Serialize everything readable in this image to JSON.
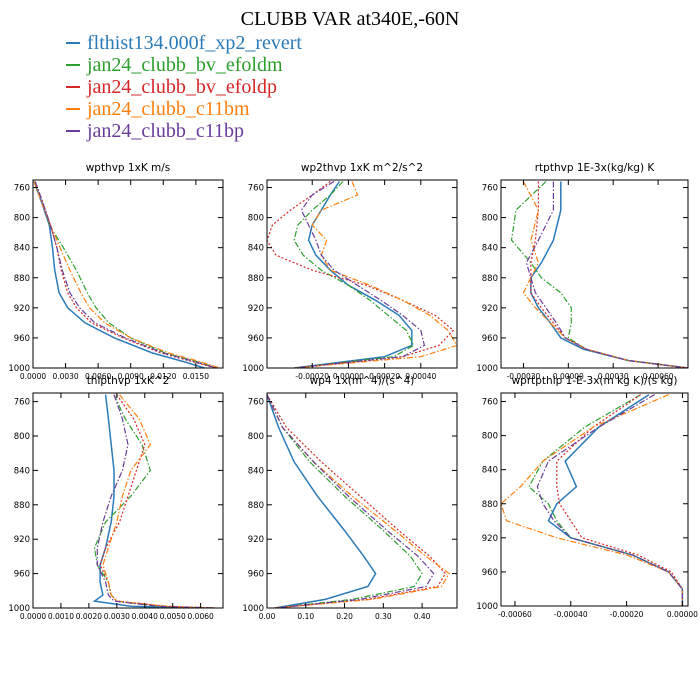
{
  "title": "CLUBB VAR at340E,-60N",
  "legend": [
    {
      "name": "flthist134.000f_xp2_revert",
      "color": "#2b7bb9",
      "dash": "solid"
    },
    {
      "name": "jan24_clubb_bv_efoldm",
      "color": "#2ca02c",
      "dash": "dashdot"
    },
    {
      "name": "jan24_clubb_bv_efoldp",
      "color": "#d62728",
      "dash": "dot"
    },
    {
      "name": "jan24_clubb_c11bm",
      "color": "#ff7f0e",
      "dash": "dashdot"
    },
    {
      "name": "jan24_clubb_c11bp",
      "color": "#6a3d9a",
      "dash": "dashdot"
    }
  ],
  "chart_data": [
    {
      "type": "line",
      "title": "wpthvp  1xK m/s",
      "xlim": [
        0,
        0.0175
      ],
      "ylim": [
        1000,
        750
      ],
      "xticks": [
        0,
        0.003,
        0.006,
        0.009,
        0.012,
        0.015
      ],
      "xticklabels": [
        "0.0000",
        "0.0030",
        "0.0060",
        "0.0090",
        "0.0120",
        "0.0150"
      ],
      "yticks": [
        760,
        800,
        840,
        880,
        920,
        960,
        1000
      ],
      "yticklabels": [
        "760",
        "800",
        "840",
        "880",
        "920",
        "960",
        "1000"
      ],
      "y": [
        752,
        780,
        810,
        840,
        870,
        900,
        920,
        940,
        960,
        980,
        992,
        1000
      ],
      "series": [
        {
          "values": [
            0.0001,
            0.0008,
            0.0015,
            0.0018,
            0.002,
            0.0024,
            0.0032,
            0.0048,
            0.0075,
            0.011,
            0.014,
            0.0158
          ]
        },
        {
          "values": [
            0.0002,
            0.0009,
            0.0015,
            0.0028,
            0.004,
            0.005,
            0.0058,
            0.007,
            0.009,
            0.0122,
            0.0152,
            0.017
          ]
        },
        {
          "values": [
            0.0002,
            0.0009,
            0.0016,
            0.0022,
            0.0026,
            0.0032,
            0.004,
            0.0054,
            0.0083,
            0.0118,
            0.0148,
            0.0168
          ]
        },
        {
          "values": [
            0.0001,
            0.0008,
            0.0016,
            0.0025,
            0.0034,
            0.0044,
            0.0052,
            0.0066,
            0.009,
            0.0125,
            0.0155,
            0.0172
          ]
        },
        {
          "values": [
            0.0002,
            0.0009,
            0.0016,
            0.0022,
            0.0027,
            0.0034,
            0.0043,
            0.0057,
            0.0085,
            0.012,
            0.015,
            0.0169
          ]
        }
      ]
    },
    {
      "type": "line",
      "title": "wp2thvp  1xK m^2/s^2",
      "xlim": [
        -0.00045,
        0.0006
      ],
      "ylim": [
        1000,
        750
      ],
      "xticks": [
        -0.0002,
        0,
        0.0002,
        0.0004
      ],
      "xticklabels": [
        "-0.00020",
        "0.00000",
        "0.00020",
        "0.00040"
      ],
      "yticks": [
        760,
        800,
        840,
        880,
        920,
        960,
        1000
      ],
      "yticklabels": [
        "760",
        "800",
        "840",
        "880",
        "920",
        "960",
        "1000"
      ],
      "y": [
        752,
        770,
        790,
        810,
        830,
        850,
        870,
        890,
        910,
        930,
        950,
        970,
        985,
        1000
      ],
      "series": [
        {
          "values": [
            -5e-05,
            -0.0001,
            -0.00015,
            -0.0002,
            -0.00022,
            -0.00018,
            -0.0001,
            0.0,
            0.00015,
            0.00028,
            0.00035,
            0.00035,
            0.0002,
            -0.0003
          ]
        },
        {
          "values": [
            -3e-05,
            -0.0001,
            -0.0002,
            -0.00028,
            -0.0003,
            -0.00025,
            -0.00015,
            0.0,
            0.00012,
            0.00022,
            0.00032,
            0.00036,
            0.00025,
            -0.0003
          ]
        },
        {
          "values": [
            -0.0001,
            -0.0002,
            -0.00032,
            -0.00042,
            -0.00045,
            -0.0004,
            -0.0002,
            0.0001,
            0.0003,
            0.00048,
            0.00058,
            0.0005,
            0.0003,
            -0.0003
          ]
        },
        {
          "values": [
            2e-05,
            5e-05,
            -0.00015,
            -0.0002,
            -0.00012,
            -0.00015,
            -0.0001,
            0.00012,
            0.0003,
            0.00045,
            0.00055,
            0.0006,
            0.0004,
            -0.0003
          ]
        },
        {
          "values": [
            -8e-05,
            -0.0002,
            -0.00026,
            -0.00022,
            -0.00018,
            -0.00015,
            -8e-05,
            5e-05,
            0.00018,
            0.0003,
            0.0004,
            0.00042,
            0.0003,
            -0.0003
          ]
        }
      ]
    },
    {
      "type": "line",
      "title": "rtpthvp  1E-3x(kg/kg) K",
      "xlim": [
        -0.00045,
        0.0008
      ],
      "ylim": [
        1000,
        750
      ],
      "xticks": [
        -0.0003,
        0,
        0.0003,
        0.0006
      ],
      "xticklabels": [
        "-0.00030",
        "0.00000",
        "0.00030",
        "0.00060"
      ],
      "yticks": [
        760,
        800,
        840,
        880,
        920,
        960,
        1000
      ],
      "yticklabels": [
        "760",
        "800",
        "840",
        "880",
        "920",
        "960",
        "1000"
      ],
      "y": [
        752,
        790,
        830,
        860,
        880,
        900,
        920,
        940,
        960,
        975,
        990,
        1000
      ],
      "series": [
        {
          "values": [
            -5e-05,
            -5e-05,
            -0.0001,
            -0.00018,
            -0.00025,
            -0.00025,
            -0.0002,
            -0.00012,
            -5e-05,
            0.0001,
            0.0004,
            0.0008
          ]
        },
        {
          "values": [
            -0.00015,
            -0.00035,
            -0.00038,
            -0.00025,
            -0.00018,
            -5e-05,
            2e-05,
            2e-05,
            0.0,
            0.00012,
            0.0004,
            0.0008
          ]
        },
        {
          "values": [
            -0.0002,
            -0.0002,
            -0.00022,
            -0.00025,
            -0.00025,
            -0.00025,
            -0.00018,
            -0.0001,
            -2e-05,
            0.00012,
            0.0004,
            0.0008
          ]
        },
        {
          "values": [
            -0.0003,
            -0.0002,
            -0.00025,
            -0.0002,
            -0.00025,
            -0.0003,
            -0.00022,
            -0.00012,
            -2e-05,
            0.00012,
            0.0004,
            0.0008
          ]
        },
        {
          "values": [
            -0.0001,
            -0.0001,
            -0.0002,
            -0.00028,
            -0.00025,
            -0.00022,
            -0.00015,
            -8e-05,
            -2e-05,
            0.00012,
            0.0004,
            0.0008
          ]
        }
      ]
    },
    {
      "type": "line",
      "title": "thlpthvp  1xK^2",
      "xlim": [
        0,
        0.0068
      ],
      "ylim": [
        1000,
        750
      ],
      "xticks": [
        0,
        0.001,
        0.002,
        0.003,
        0.004,
        0.005,
        0.006
      ],
      "xticklabels": [
        "0.0000",
        "0.0010",
        "0.0020",
        "0.0030",
        "0.0040",
        "0.0050",
        "0.0060"
      ],
      "yticks": [
        760,
        800,
        840,
        880,
        920,
        960,
        1000
      ],
      "yticklabels": [
        "760",
        "800",
        "840",
        "880",
        "920",
        "960",
        "1000"
      ],
      "y": [
        752,
        780,
        810,
        840,
        870,
        900,
        930,
        950,
        970,
        985,
        992,
        998,
        1000
      ],
      "series": [
        {
          "values": [
            0.0026,
            0.0027,
            0.0028,
            0.0029,
            0.0029,
            0.0028,
            0.0026,
            0.0024,
            0.0024,
            0.0025,
            0.0022,
            0.0035,
            0.006
          ]
        },
        {
          "values": [
            0.0029,
            0.0033,
            0.0039,
            0.0042,
            0.0035,
            0.0026,
            0.0022,
            0.0023,
            0.0027,
            0.0028,
            0.003,
            0.0045,
            0.0065
          ]
        },
        {
          "values": [
            0.003,
            0.0036,
            0.004,
            0.0037,
            0.0034,
            0.0031,
            0.0026,
            0.0024,
            0.0027,
            0.0028,
            0.003,
            0.0048,
            0.0065
          ]
        },
        {
          "values": [
            0.0031,
            0.0038,
            0.0042,
            0.0035,
            0.0032,
            0.003,
            0.0027,
            0.0025,
            0.0027,
            0.0028,
            0.003,
            0.0048,
            0.0065
          ]
        },
        {
          "values": [
            0.0029,
            0.0032,
            0.0034,
            0.0032,
            0.0028,
            0.0025,
            0.0023,
            0.0023,
            0.0026,
            0.0027,
            0.0029,
            0.0045,
            0.0065
          ]
        }
      ]
    },
    {
      "type": "line",
      "title": "wp4  1x(m^4)/(s^4)",
      "xlim": [
        0,
        0.49
      ],
      "ylim": [
        1000,
        750
      ],
      "xticks": [
        0,
        0.1,
        0.2,
        0.3,
        0.4
      ],
      "xticklabels": [
        "0.00",
        "0.10",
        "0.20",
        "0.30",
        "0.40"
      ],
      "yticks": [
        760,
        800,
        840,
        880,
        920,
        960,
        1000
      ],
      "yticklabels": [
        "760",
        "800",
        "840",
        "880",
        "920",
        "960",
        "1000"
      ],
      "y": [
        752,
        790,
        830,
        870,
        910,
        940,
        960,
        975,
        990,
        1000
      ],
      "series": [
        {
          "values": [
            0.0,
            0.03,
            0.07,
            0.13,
            0.2,
            0.25,
            0.28,
            0.26,
            0.15,
            0.02
          ]
        },
        {
          "values": [
            0.0,
            0.04,
            0.11,
            0.2,
            0.3,
            0.37,
            0.4,
            0.38,
            0.22,
            0.02
          ]
        },
        {
          "values": [
            0.0,
            0.05,
            0.14,
            0.24,
            0.34,
            0.42,
            0.46,
            0.44,
            0.26,
            0.02
          ]
        },
        {
          "values": [
            0.0,
            0.04,
            0.12,
            0.22,
            0.33,
            0.41,
            0.47,
            0.45,
            0.27,
            0.02
          ]
        },
        {
          "values": [
            0.0,
            0.04,
            0.12,
            0.21,
            0.31,
            0.39,
            0.43,
            0.41,
            0.24,
            0.02
          ]
        }
      ]
    },
    {
      "type": "line",
      "title": "wprtpthlp  1-E-3x(m kg K)/(s kg)",
      "xlim": [
        -0.00065,
        2e-05
      ],
      "ylim": [
        1000,
        750
      ],
      "xticks": [
        -0.0006,
        -0.0004,
        -0.0002,
        0
      ],
      "xticklabels": [
        "-0.00060",
        "-0.00040",
        "-0.00020",
        "0.00000"
      ],
      "yticks": [
        760,
        800,
        840,
        880,
        920,
        960,
        1000
      ],
      "yticklabels": [
        "760",
        "800",
        "840",
        "880",
        "920",
        "960",
        "1000"
      ],
      "y": [
        752,
        790,
        830,
        860,
        880,
        900,
        920,
        940,
        960,
        980,
        1000
      ],
      "series": [
        {
          "values": [
            -0.00012,
            -0.0003,
            -0.00042,
            -0.00038,
            -0.00045,
            -0.00048,
            -0.0004,
            -0.00018,
            -5e-05,
            0.0,
            0.0
          ]
        },
        {
          "values": [
            -0.00015,
            -0.00035,
            -0.0005,
            -0.00055,
            -0.00048,
            -0.00045,
            -0.0004,
            -0.00018,
            -5e-05,
            0.0,
            0.0
          ]
        },
        {
          "values": [
            -0.00015,
            -0.00032,
            -0.00045,
            -0.00045,
            -0.00044,
            -0.0004,
            -0.00036,
            -0.00016,
            -4e-05,
            0.0,
            0.0
          ]
        },
        {
          "values": [
            -5e-05,
            -0.00032,
            -0.0005,
            -0.00058,
            -0.00065,
            -0.00063,
            -0.00045,
            -0.0002,
            -5e-05,
            0.0,
            0.0
          ]
        },
        {
          "values": [
            -0.0001,
            -0.0003,
            -0.00048,
            -0.00052,
            -0.0005,
            -0.00046,
            -0.0004,
            -0.00018,
            -5e-05,
            0.0,
            0.0
          ]
        }
      ]
    }
  ]
}
